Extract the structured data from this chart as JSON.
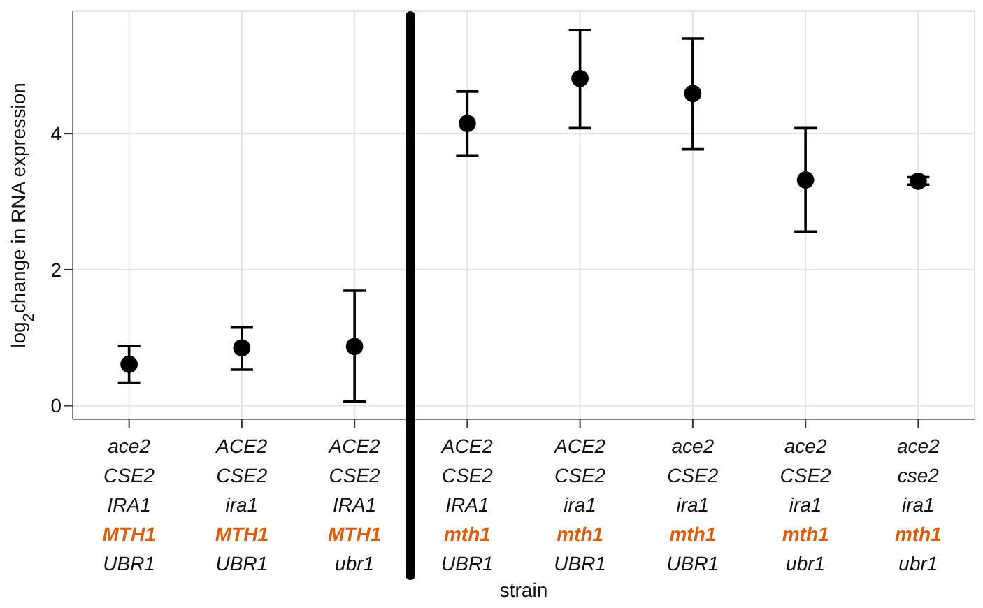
{
  "chart_data": {
    "type": "scatter",
    "xlabel": "strain",
    "ylabel": "log$_{2}$change in RNA expression",
    "categories": [
      "ace2\nCSE2\nIRA1\nMTH1\nUBR1",
      "ACE2\nCSE2\nira1\nMTH1\nUBR1",
      "ACE2\nCSE2\nIRA1\nMTH1\nubr1",
      "ACE2\nCSE2\nIRA1\nmth1\nUBR1",
      "ACE2\nCSE2\nira1\nmth1\nUBR1",
      "ace2\nCSE2\nira1\nmth1\nUBR1",
      "ace2\nCSE2\nira1\nmth1\nubr1",
      "ace2\ncse2\nira1\nmth1\nubr1"
    ],
    "values": [
      0.61,
      0.85,
      0.87,
      4.15,
      4.81,
      4.59,
      3.32,
      3.3
    ],
    "errors": [
      [
        0.34,
        0.88
      ],
      [
        0.53,
        1.15
      ],
      [
        0.06,
        1.69
      ],
      [
        3.67,
        4.62
      ],
      [
        4.08,
        5.52
      ],
      [
        3.77,
        5.4
      ],
      [
        2.56,
        4.08
      ],
      [
        3.25,
        3.36
      ]
    ],
    "color": "#000000",
    "marker": "circle",
    "ylim": [
      -0.2,
      5.8
    ],
    "yticks": [
      0,
      2,
      4
    ],
    "grid": true
  }
}
